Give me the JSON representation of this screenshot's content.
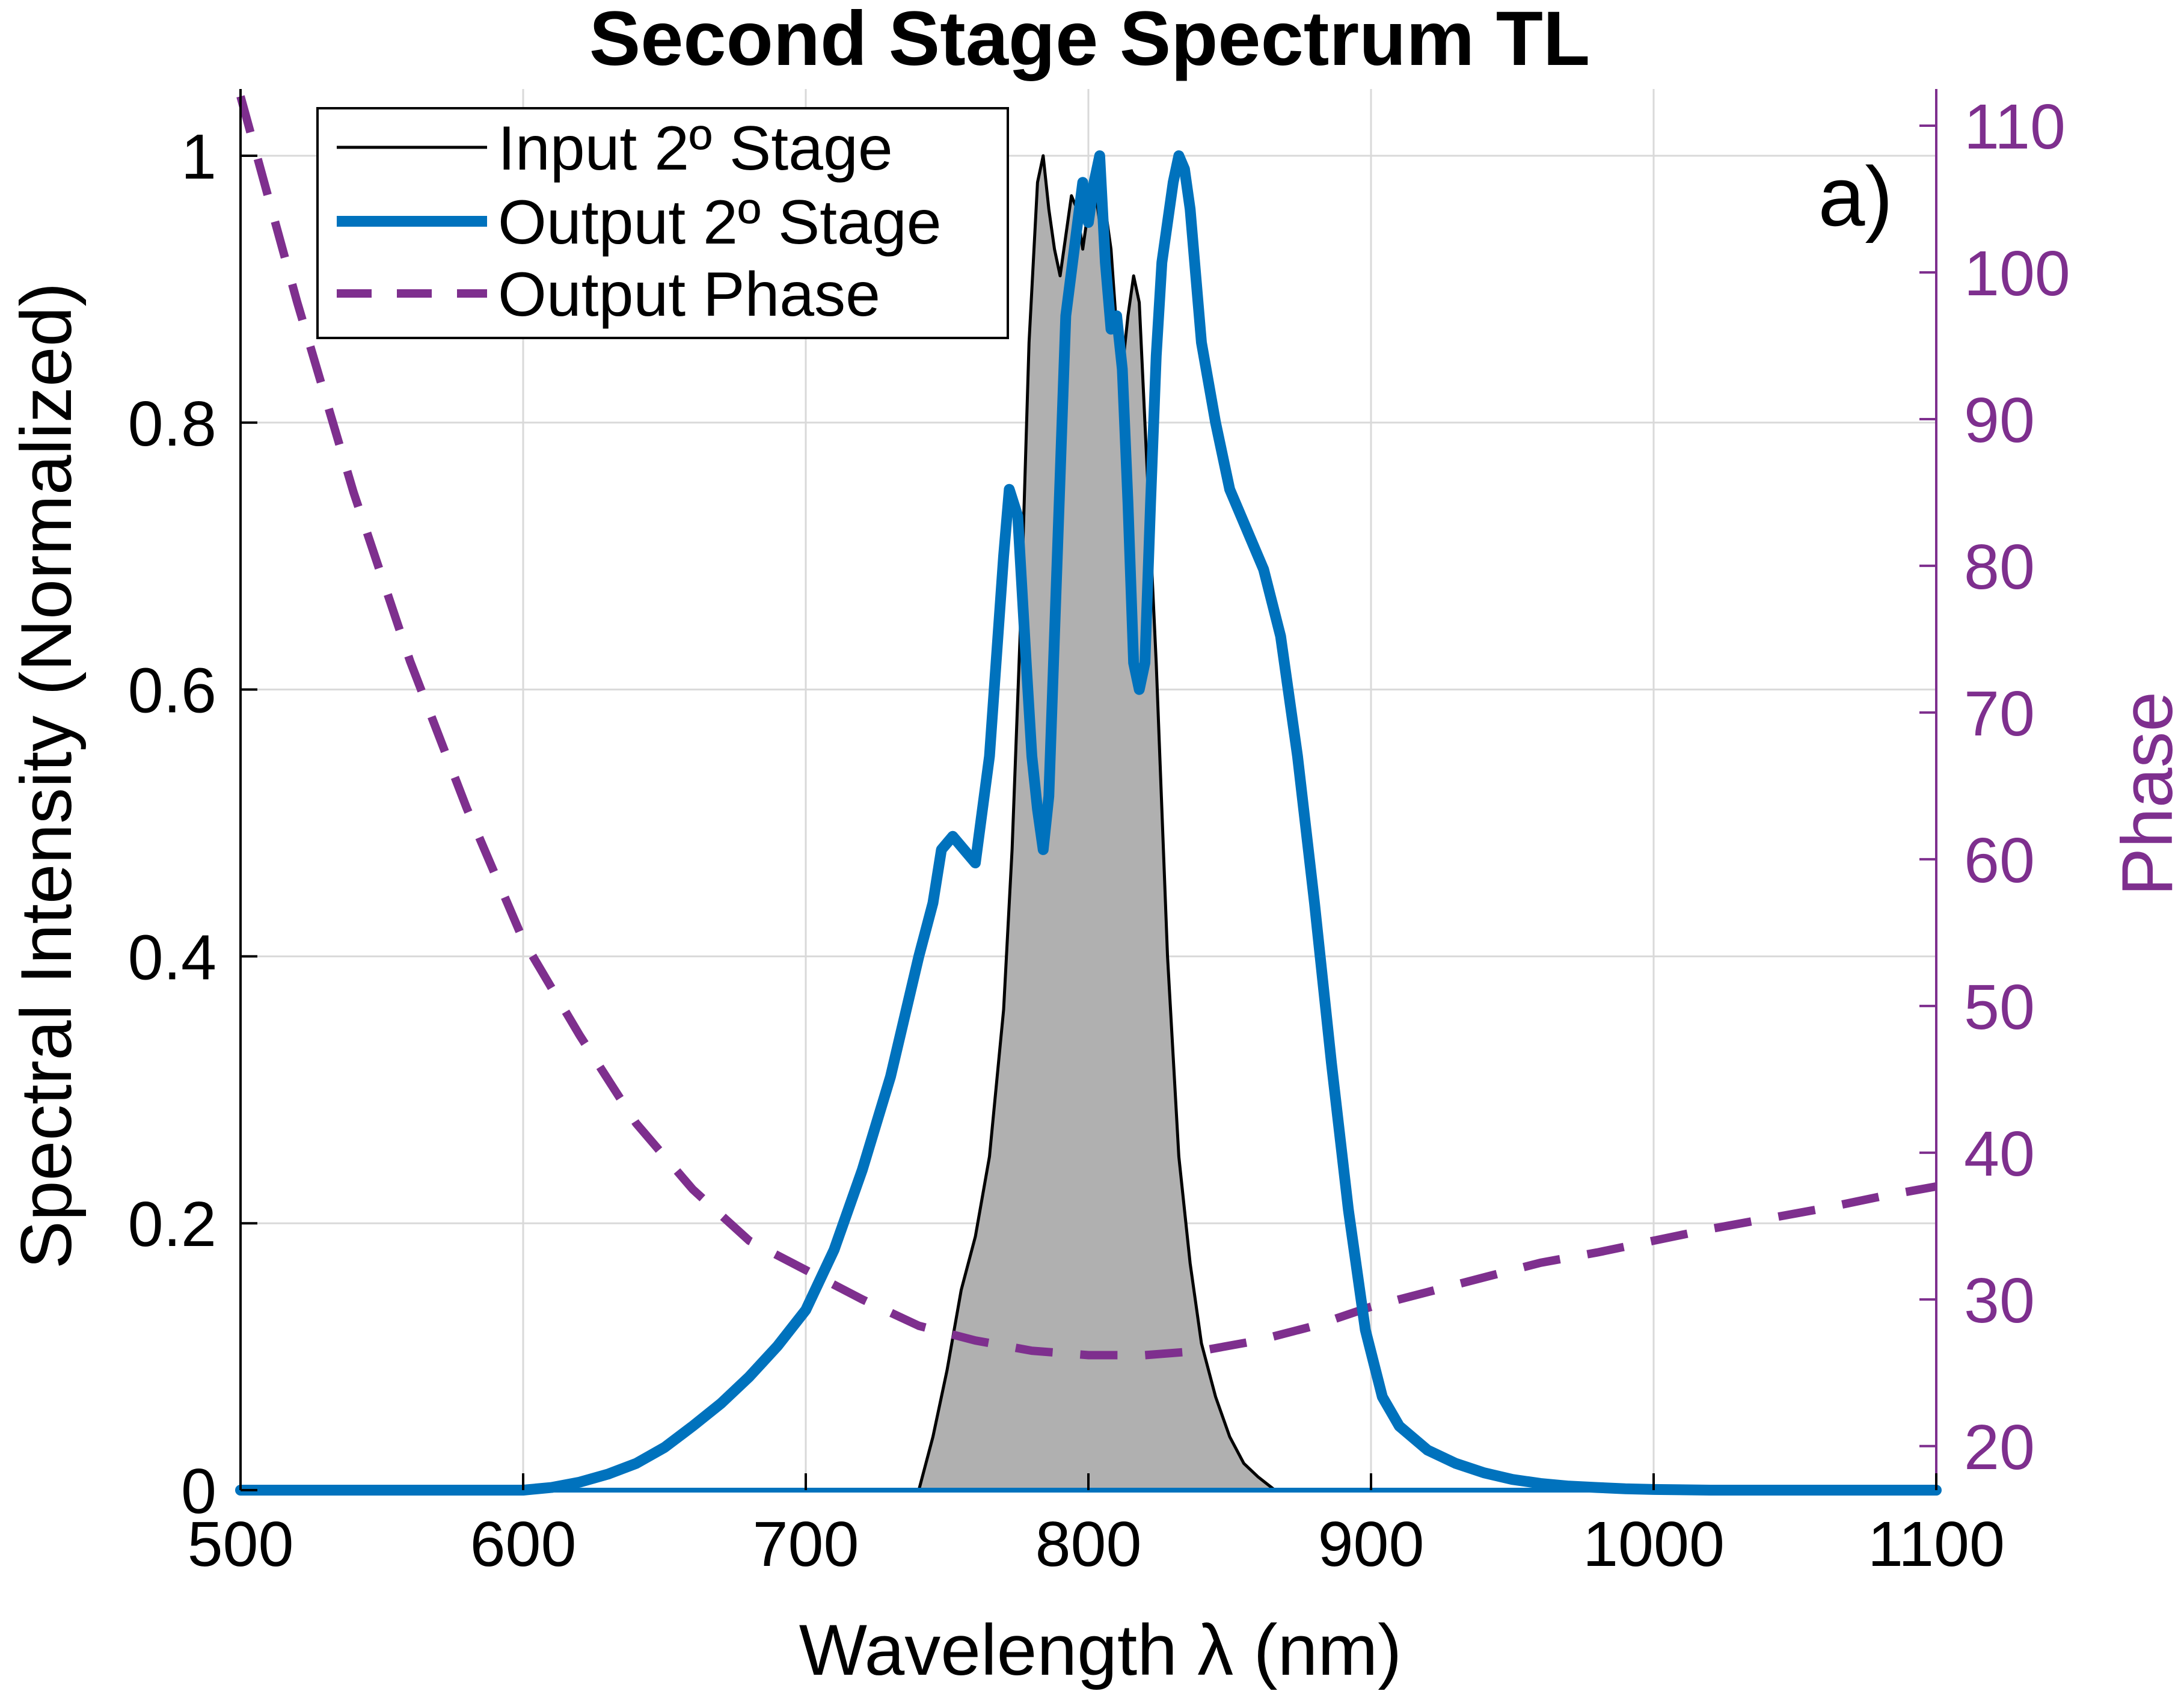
{
  "chart_data": {
    "type": "line",
    "title": "Second Stage Spectrum TL",
    "xlabel": "Wavelength λ (nm)",
    "ylabel": "Spectral Intensity (Normalized)",
    "ylabel_right": "Phase",
    "annotation": "a)",
    "xlim": [
      500,
      1100
    ],
    "ylim": [
      0,
      1.05
    ],
    "ylim_right": [
      17,
      112.5
    ],
    "grid": true,
    "legend_position": "top-left",
    "x_ticks": [
      500,
      600,
      700,
      800,
      900,
      1000,
      1100
    ],
    "x_tick_labels": [
      "500",
      "600",
      "700",
      "800",
      "900",
      "1000",
      "1100"
    ],
    "y_ticks": [
      0,
      0.2,
      0.4,
      0.6,
      0.8,
      1
    ],
    "y_tick_labels": [
      "0",
      "0.2",
      "0.4",
      "0.6",
      "0.8",
      "1"
    ],
    "y_right_ticks": [
      20,
      30,
      40,
      50,
      60,
      70,
      80,
      90,
      100,
      110
    ],
    "y_right_tick_labels": [
      "20",
      "30",
      "40",
      "50",
      "60",
      "70",
      "80",
      "90",
      "100",
      "110"
    ],
    "colors": {
      "input": "#000000",
      "input_fill": "#b0b0b0",
      "output": "#0072BD",
      "phase": "#7E2F8E",
      "grid": "#d9d9d9",
      "axis": "#000000",
      "axis_right": "#7E2F8E"
    },
    "series": [
      {
        "name": "Input 2º Stage",
        "axis": "left",
        "style": "solid-filled",
        "x": [
          740,
          745,
          750,
          755,
          760,
          765,
          770,
          773,
          776,
          779,
          782,
          784,
          786,
          788,
          790,
          792,
          794,
          796,
          798,
          800,
          802,
          804,
          806,
          808,
          810,
          812,
          814,
          816,
          818,
          820,
          824,
          828,
          832,
          836,
          840,
          845,
          850,
          855,
          860,
          866
        ],
        "values": [
          0,
          0.04,
          0.09,
          0.15,
          0.19,
          0.25,
          0.36,
          0.48,
          0.65,
          0.86,
          0.98,
          1.0,
          0.96,
          0.93,
          0.91,
          0.94,
          0.97,
          0.96,
          0.93,
          0.96,
          0.98,
          0.95,
          0.96,
          0.93,
          0.87,
          0.84,
          0.88,
          0.91,
          0.89,
          0.8,
          0.62,
          0.4,
          0.25,
          0.17,
          0.11,
          0.07,
          0.04,
          0.02,
          0.01,
          0
        ]
      },
      {
        "name": "Output 2º Stage",
        "axis": "left",
        "style": "thick",
        "x": [
          500,
          600,
          610,
          620,
          630,
          640,
          650,
          660,
          670,
          680,
          690,
          700,
          710,
          720,
          730,
          740,
          745,
          748,
          752,
          756,
          760,
          765,
          770,
          772,
          775,
          778,
          780,
          782,
          784,
          786,
          789,
          792,
          795,
          798,
          800,
          802,
          804,
          806,
          808,
          810,
          812,
          814,
          816,
          818,
          820,
          822,
          824,
          826,
          828,
          830,
          832,
          834,
          836,
          838,
          840,
          845,
          850,
          856,
          862,
          868,
          874,
          880,
          886,
          892,
          898,
          904,
          910,
          920,
          930,
          940,
          950,
          960,
          970,
          980,
          990,
          1000,
          1020,
          1040,
          1060,
          1080,
          1100
        ],
        "values": [
          0,
          0,
          0.002,
          0.006,
          0.012,
          0.02,
          0.032,
          0.048,
          0.065,
          0.085,
          0.108,
          0.135,
          0.18,
          0.24,
          0.31,
          0.4,
          0.44,
          0.48,
          0.49,
          0.48,
          0.47,
          0.55,
          0.7,
          0.75,
          0.73,
          0.62,
          0.55,
          0.51,
          0.48,
          0.52,
          0.7,
          0.88,
          0.93,
          0.98,
          0.95,
          0.98,
          1.0,
          0.92,
          0.87,
          0.88,
          0.84,
          0.74,
          0.62,
          0.6,
          0.62,
          0.74,
          0.85,
          0.92,
          0.95,
          0.98,
          1.0,
          0.99,
          0.96,
          0.91,
          0.86,
          0.8,
          0.75,
          0.72,
          0.69,
          0.64,
          0.55,
          0.44,
          0.32,
          0.21,
          0.12,
          0.07,
          0.048,
          0.03,
          0.02,
          0.013,
          0.008,
          0.005,
          0.003,
          0.002,
          0.001,
          0.0005,
          0,
          0,
          0,
          0,
          0
        ]
      },
      {
        "name": "Output Phase",
        "axis": "right",
        "style": "dashed",
        "x": [
          500,
          520,
          540,
          560,
          580,
          600,
          620,
          640,
          660,
          680,
          700,
          720,
          740,
          760,
          780,
          800,
          820,
          840,
          860,
          880,
          900,
          920,
          940,
          960,
          980,
          1000,
          1020,
          1040,
          1060,
          1080,
          1100
        ],
        "values": [
          112,
          98,
          85,
          73.5,
          63.5,
          54.5,
          48,
          42,
          37.5,
          34,
          32,
          30,
          28.2,
          27.2,
          26.5,
          26.2,
          26.2,
          26.5,
          27.2,
          28.2,
          29.5,
          30.5,
          31.5,
          32.5,
          33.2,
          34,
          34.8,
          35.5,
          36.2,
          37,
          37.7
        ]
      }
    ]
  }
}
